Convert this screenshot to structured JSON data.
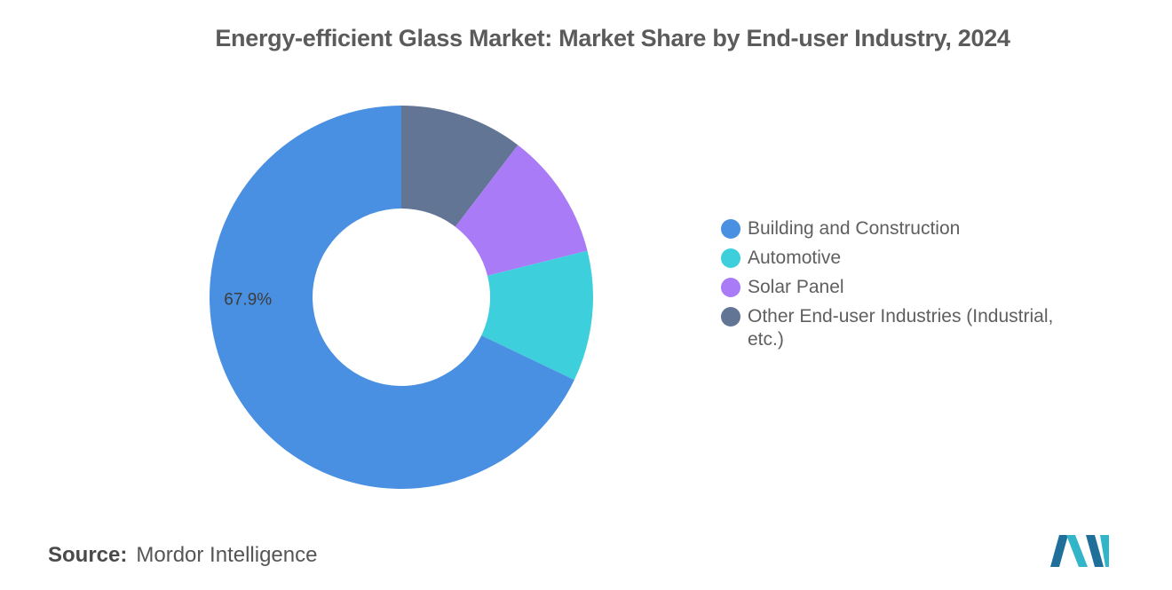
{
  "chart_data": {
    "type": "pie",
    "style": "donut",
    "title": "Energy-efficient Glass Market: Market Share by End-user Industry, 2024",
    "categories": [
      "Building and Construction",
      "Automotive",
      "Solar Panel",
      "Other End-user Industries (Industrial, etc.)"
    ],
    "values": [
      67.9,
      11.0,
      10.7,
      10.4
    ],
    "colors": [
      "#4a90e2",
      "#3ecfdc",
      "#a97bf7",
      "#627595"
    ],
    "data_labels": [
      "67.9%",
      "",
      "",
      ""
    ],
    "legend_position": "right"
  },
  "source": {
    "label": "Source:",
    "value": "Mordor Intelligence"
  },
  "logo": {
    "icon": "mordor-intelligence-logo-icon",
    "colors": [
      "#1f6f9a",
      "#32b5c9"
    ]
  }
}
